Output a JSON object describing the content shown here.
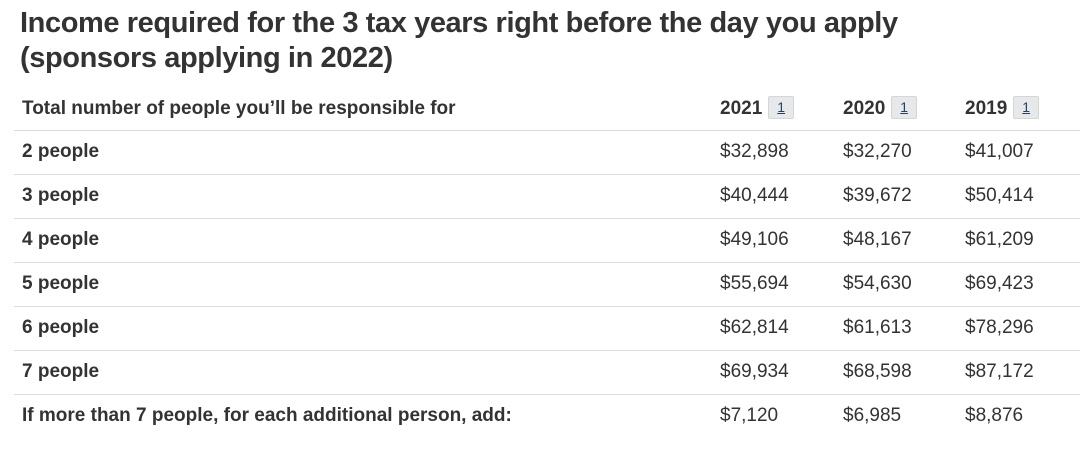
{
  "page": {
    "title_line1": "Income required for the 3 tax years right before the day you apply",
    "title_line2": "(sponsors applying in 2022)"
  },
  "table": {
    "row_header": "Total number of people you’ll be responsible for",
    "year_columns": [
      {
        "label": "2021",
        "footnote": "1"
      },
      {
        "label": "2020",
        "footnote": "1"
      },
      {
        "label": "2019",
        "footnote": "1"
      }
    ],
    "rows": [
      {
        "label": "2 people",
        "values": [
          "$32,898",
          "$32,270",
          "$41,007"
        ]
      },
      {
        "label": "3 people",
        "values": [
          "$40,444",
          "$39,672",
          "$50,414"
        ]
      },
      {
        "label": "4 people",
        "values": [
          "$49,106",
          "$48,167",
          "$61,209"
        ]
      },
      {
        "label": "5 people",
        "values": [
          "$55,694",
          "$54,630",
          "$69,423"
        ]
      },
      {
        "label": "6 people",
        "values": [
          "$62,814",
          "$61,613",
          "$78,296"
        ]
      },
      {
        "label": "7 people",
        "values": [
          "$69,934",
          "$68,598",
          "$87,172"
        ]
      },
      {
        "label": "If more than 7 people, for each additional person, add:",
        "values": [
          "$7,120",
          "$6,985",
          "$8,876"
        ]
      }
    ]
  },
  "colors": {
    "text": "#333333",
    "row_border": "#dddddd",
    "header_border": "#d9d9d9",
    "footnote_bg": "#e7e8e9",
    "footnote_border": "#d4d5d6",
    "footnote_link": "#284162"
  }
}
